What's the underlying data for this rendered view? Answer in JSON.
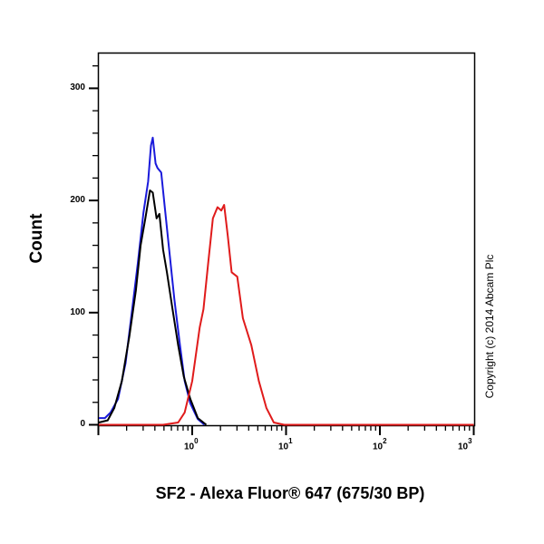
{
  "chart_data": {
    "type": "line",
    "title": "",
    "xlabel": "SF2 - Alexa Fluor® 647 (675/30 BP)",
    "ylabel": "Count",
    "xscale": "log",
    "xlim": [
      0.1,
      1000
    ],
    "ylim": [
      0,
      330
    ],
    "grid": false,
    "legend": null,
    "annotations": [
      "Copyright (c) 2014 Abcam Plc"
    ],
    "y_ticks": [
      0,
      100,
      200,
      300
    ],
    "x_ticks": [
      "10^0",
      "10^1",
      "10^2",
      "10^3"
    ],
    "series": [
      {
        "name": "blue",
        "color": "#1a1adb",
        "points_log10x_count": [
          [
            -1.0,
            6
          ],
          [
            -0.93,
            6
          ],
          [
            -0.87,
            11
          ],
          [
            -0.79,
            23
          ],
          [
            -0.71,
            55
          ],
          [
            -0.64,
            103
          ],
          [
            -0.58,
            144
          ],
          [
            -0.52,
            189
          ],
          [
            -0.47,
            217
          ],
          [
            -0.44,
            249
          ],
          [
            -0.42,
            256
          ],
          [
            -0.39,
            233
          ],
          [
            -0.37,
            229
          ],
          [
            -0.33,
            225
          ],
          [
            -0.29,
            192
          ],
          [
            -0.25,
            160
          ],
          [
            -0.19,
            112
          ],
          [
            -0.13,
            71
          ],
          [
            -0.08,
            39
          ],
          [
            -0.02,
            19
          ],
          [
            0.06,
            5
          ],
          [
            0.13,
            0
          ]
        ]
      },
      {
        "name": "black",
        "color": "#000000",
        "points_log10x_count": [
          [
            -1.0,
            2
          ],
          [
            -0.9,
            4
          ],
          [
            -0.83,
            15
          ],
          [
            -0.75,
            39
          ],
          [
            -0.67,
            79
          ],
          [
            -0.6,
            120
          ],
          [
            -0.55,
            160
          ],
          [
            -0.5,
            184
          ],
          [
            -0.45,
            209
          ],
          [
            -0.42,
            207
          ],
          [
            -0.38,
            184
          ],
          [
            -0.35,
            188
          ],
          [
            -0.31,
            156
          ],
          [
            -0.27,
            136
          ],
          [
            -0.21,
            103
          ],
          [
            -0.15,
            71
          ],
          [
            -0.09,
            43
          ],
          [
            -0.02,
            23
          ],
          [
            0.06,
            6
          ],
          [
            0.15,
            0
          ]
        ]
      },
      {
        "name": "red",
        "color": "#e01b1b",
        "points_log10x_count": [
          [
            -1.0,
            0
          ],
          [
            -0.31,
            0
          ],
          [
            -0.15,
            2
          ],
          [
            -0.08,
            11
          ],
          [
            0.0,
            39
          ],
          [
            0.08,
            87
          ],
          [
            0.12,
            103
          ],
          [
            0.17,
            144
          ],
          [
            0.22,
            184
          ],
          [
            0.27,
            194
          ],
          [
            0.31,
            191
          ],
          [
            0.34,
            196
          ],
          [
            0.38,
            168
          ],
          [
            0.42,
            136
          ],
          [
            0.48,
            132
          ],
          [
            0.54,
            95
          ],
          [
            0.63,
            71
          ],
          [
            0.71,
            39
          ],
          [
            0.79,
            15
          ],
          [
            0.87,
            2
          ],
          [
            0.98,
            0
          ],
          [
            3.0,
            0
          ]
        ]
      }
    ]
  },
  "labels": {
    "ylabel": "Count",
    "xlabel": "SF2 - Alexa Fluor® 647 (675/30 BP)",
    "copyright": "Copyright (c) 2014 Abcam Plc",
    "y_tick_0": "0",
    "y_tick_100": "100",
    "y_tick_200": "200",
    "y_tick_300": "300",
    "x_tick_base": "10",
    "x_tick_exp_0": "0",
    "x_tick_exp_1": "1",
    "x_tick_exp_2": "2",
    "x_tick_exp_3": "3"
  }
}
